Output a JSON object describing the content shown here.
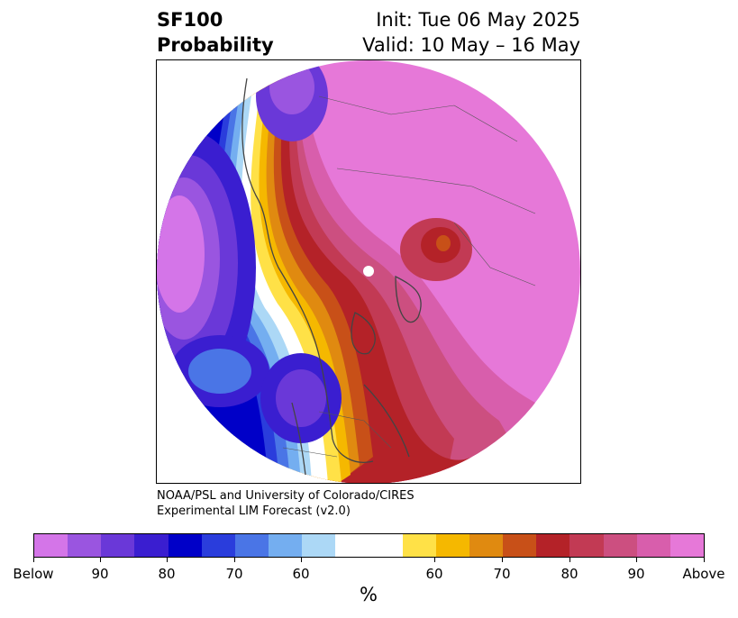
{
  "title": {
    "line1": "SF100",
    "line2": "Probability",
    "init": "Init: Tue 06 May 2025",
    "valid": "Valid: 10 May – 16 May"
  },
  "credit": {
    "line1": "NOAA/PSL and University of Colorado/CIRES",
    "line2": "Experimental LIM Forecast (v2.0)"
  },
  "colorbar": {
    "unit": "%",
    "ticks": [
      "Below",
      "90",
      "80",
      "70",
      "60",
      "60",
      "70",
      "80",
      "90",
      "Above"
    ],
    "below_colors": [
      "#d475e8",
      "#9a55e0",
      "#6a38d8",
      "#3a1ed0",
      "#0000c8",
      "#2a3ddc",
      "#4a75e6",
      "#74aef0",
      "#acd8f6"
    ],
    "neutral_color": "#ffffff",
    "above_colors": [
      "#ffe147",
      "#f5b800",
      "#e08a10",
      "#c85018",
      "#b42228",
      "#c23a54",
      "#cc4f80",
      "#d85eac",
      "#e678d8"
    ]
  },
  "map": {
    "projection": "north polar stereographic",
    "field": "SF100 probability"
  }
}
